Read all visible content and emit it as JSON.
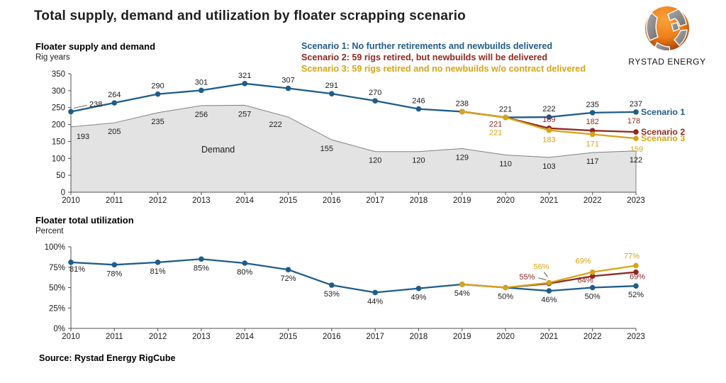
{
  "page": {
    "title": "Total supply, demand and utilization by floater scrapping scenario",
    "source": "Source: Rystad Energy RigCube"
  },
  "logo": {
    "brand": "RYSTAD ENERGY"
  },
  "colors": {
    "scenario1": "#1F5C8B",
    "scenario2": "#8F2823",
    "scenario3": "#D6A419",
    "demand_fill": "#E3E3E3",
    "demand_stroke": "#808080",
    "axis": "#4D4D4D",
    "label": "#1A1A1A"
  },
  "legend": {
    "items": [
      {
        "label": "Scenario 1: No further retirements and newbuilds delivered",
        "color": "#1F5C8B"
      },
      {
        "label": "Scenario 2: 59 rigs retired, but newbuilds will be delivered",
        "color": "#8F2823"
      },
      {
        "label": "Scenario 3: 59 rigs retired and no newbuilds w/o contract delivered",
        "color": "#D6A419"
      }
    ]
  },
  "chart_data": [
    {
      "type": "line",
      "title": "Floater supply and demand",
      "ylabel": "Rig years",
      "categories": [
        2010,
        2011,
        2012,
        2013,
        2014,
        2015,
        2016,
        2017,
        2018,
        2019,
        2020,
        2021,
        2022,
        2023
      ],
      "ylim": [
        0,
        350
      ],
      "yticks": [
        0,
        50,
        100,
        150,
        200,
        250,
        300,
        350
      ],
      "unit": "",
      "grid": false,
      "legend_position": "end-of-line",
      "area": {
        "name": "Demand",
        "label": "Demand",
        "values": [
          193,
          205,
          235,
          256,
          257,
          222,
          155,
          120,
          120,
          129,
          110,
          103,
          117,
          122
        ]
      },
      "series": [
        {
          "name": "Scenario 1",
          "color": "#1F5C8B",
          "values": [
            238,
            264,
            290,
            301,
            321,
            307,
            291,
            270,
            246,
            238,
            221,
            222,
            235,
            237
          ]
        },
        {
          "name": "Scenario 2",
          "color": "#8F2823",
          "values": [
            null,
            null,
            null,
            null,
            null,
            null,
            null,
            null,
            null,
            238,
            221,
            189,
            182,
            178
          ]
        },
        {
          "name": "Scenario 3",
          "color": "#D6A419",
          "values": [
            null,
            null,
            null,
            null,
            null,
            null,
            null,
            null,
            null,
            238,
            221,
            183,
            171,
            159
          ]
        }
      ]
    },
    {
      "type": "line",
      "title": "Floater total utilization",
      "ylabel": "Percent",
      "categories": [
        2010,
        2011,
        2012,
        2013,
        2014,
        2015,
        2016,
        2017,
        2018,
        2019,
        2020,
        2021,
        2022,
        2023
      ],
      "ylim": [
        0,
        100
      ],
      "yticks": [
        0,
        25,
        50,
        75,
        100
      ],
      "unit": "%",
      "grid": false,
      "series": [
        {
          "name": "Scenario 1",
          "color": "#1F5C8B",
          "values": [
            81,
            78,
            81,
            85,
            80,
            72,
            53,
            44,
            49,
            54,
            50,
            46,
            50,
            52
          ]
        },
        {
          "name": "Scenario 2",
          "color": "#8F2823",
          "values": [
            null,
            null,
            null,
            null,
            null,
            null,
            null,
            null,
            null,
            54,
            50,
            55,
            64,
            69
          ]
        },
        {
          "name": "Scenario 3",
          "color": "#D6A419",
          "values": [
            null,
            null,
            null,
            null,
            null,
            null,
            null,
            null,
            null,
            54,
            50,
            56,
            69,
            77
          ]
        }
      ]
    }
  ]
}
